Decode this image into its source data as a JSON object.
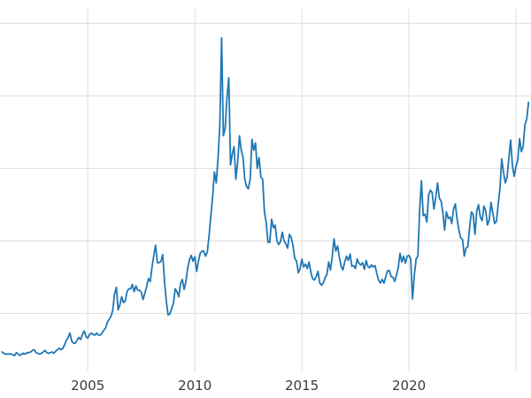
{
  "chart_data": {
    "type": "line",
    "title": "",
    "xlabel": "",
    "ylabel": "",
    "legend_position": "none",
    "x_unit": "year",
    "x_start": 2001.0,
    "x_step": 0.0833333,
    "xlim": [
      2000.9,
      2025.7
    ],
    "ylim": [
      2,
      52
    ],
    "grid": true,
    "grid_x": [
      2005,
      2010,
      2015,
      2020,
      2025
    ],
    "grid_y": [
      10,
      20,
      30,
      40,
      50
    ],
    "xticks": [
      {
        "value": 2005,
        "label": "2005"
      },
      {
        "value": 2010,
        "label": "2010"
      },
      {
        "value": 2015,
        "label": "2015"
      },
      {
        "value": 2020,
        "label": "2020"
      }
    ],
    "line_color": "#1f77b4",
    "line_width": 1.8,
    "grid_color": "#dedede",
    "tick_label_color": "#3a3a3a",
    "background": "#ffffff",
    "values": [
      4.7,
      4.5,
      4.4,
      4.4,
      4.4,
      4.4,
      4.3,
      4.2,
      4.6,
      4.4,
      4.2,
      4.4,
      4.5,
      4.4,
      4.6,
      4.6,
      4.7,
      4.9,
      5.0,
      4.6,
      4.5,
      4.4,
      4.5,
      4.7,
      4.9,
      4.6,
      4.5,
      4.6,
      4.7,
      4.5,
      4.8,
      5.0,
      5.2,
      5.0,
      5.2,
      5.7,
      6.3,
      6.7,
      7.3,
      6.2,
      5.9,
      5.9,
      6.3,
      6.7,
      6.4,
      7.1,
      7.6,
      6.8,
      6.6,
      7.1,
      7.3,
      7.1,
      7.0,
      7.3,
      7.0,
      7.0,
      7.3,
      7.7,
      8.0,
      8.8,
      9.2,
      9.6,
      10.4,
      12.7,
      13.6,
      10.5,
      11.2,
      12.3,
      11.5,
      11.7,
      13.0,
      13.4,
      13.4,
      14.0,
      13.0,
      13.8,
      13.2,
      13.2,
      12.9,
      11.9,
      12.8,
      13.7,
      14.8,
      14.4,
      16.4,
      18.0,
      19.4,
      17.0,
      17.0,
      17.2,
      18.1,
      14.4,
      11.7,
      9.8,
      9.9,
      10.7,
      11.4,
      13.4,
      13.0,
      12.3,
      14.1,
      14.7,
      13.3,
      14.4,
      16.3,
      17.4,
      18.0,
      17.2,
      17.8,
      15.8,
      17.2,
      18.3,
      18.6,
      18.6,
      17.9,
      18.5,
      20.8,
      23.5,
      26.2,
      29.5,
      28.0,
      31.5,
      36.0,
      48.0,
      34.5,
      35.5,
      39.8,
      42.5,
      30.5,
      32.0,
      33.0,
      28.5,
      30.8,
      34.5,
      32.5,
      31.5,
      28.5,
      27.5,
      27.2,
      28.5,
      34.0,
      32.5,
      33.5,
      30.0,
      31.5,
      28.8,
      28.5,
      24.0,
      22.5,
      19.8,
      19.8,
      23.0,
      21.8,
      22.2,
      20.0,
      19.5,
      19.9,
      21.2,
      20.0,
      19.6,
      19.0,
      20.9,
      20.5,
      19.4,
      17.6,
      17.2,
      15.6,
      16.2,
      17.5,
      16.4,
      16.8,
      16.2,
      17.1,
      15.7,
      14.8,
      14.6,
      15.1,
      15.8,
      14.2,
      13.9,
      14.2,
      14.9,
      15.4,
      17.1,
      16.0,
      17.8,
      20.3,
      18.6,
      19.3,
      17.7,
      16.5,
      16.0,
      17.1,
      17.9,
      17.3,
      18.2,
      16.5,
      16.6,
      16.2,
      17.5,
      16.9,
      16.7,
      17.0,
      16.1,
      17.3,
      16.5,
      16.3,
      16.7,
      16.4,
      16.6,
      15.5,
      14.6,
      14.2,
      14.7,
      14.2,
      15.1,
      15.9,
      15.9,
      15.1,
      15.0,
      14.4,
      15.3,
      16.3,
      18.3,
      17.1,
      17.9,
      16.9,
      17.9,
      18.0,
      17.5,
      12.0,
      15.2,
      17.5,
      17.9,
      24.3,
      28.3,
      23.5,
      23.7,
      22.6,
      26.3,
      27.0,
      26.7,
      24.4,
      25.9,
      28.0,
      25.9,
      25.5,
      23.9,
      21.5,
      24.0,
      23.1,
      23.3,
      22.4,
      24.4,
      25.1,
      23.0,
      21.5,
      20.4,
      20.2,
      17.9,
      19.0,
      19.2,
      21.8,
      24.0,
      23.6,
      20.9,
      24.1,
      25.0,
      23.3,
      22.8,
      24.8,
      24.2,
      22.2,
      22.9,
      25.3,
      23.8,
      22.4,
      22.7,
      25.0,
      27.2,
      31.3,
      29.4,
      28.0,
      28.8,
      31.5,
      33.9,
      30.4,
      28.9,
      30.3,
      31.2,
      34.1,
      32.3,
      33.0,
      36.0,
      36.8,
      39.1
    ]
  }
}
